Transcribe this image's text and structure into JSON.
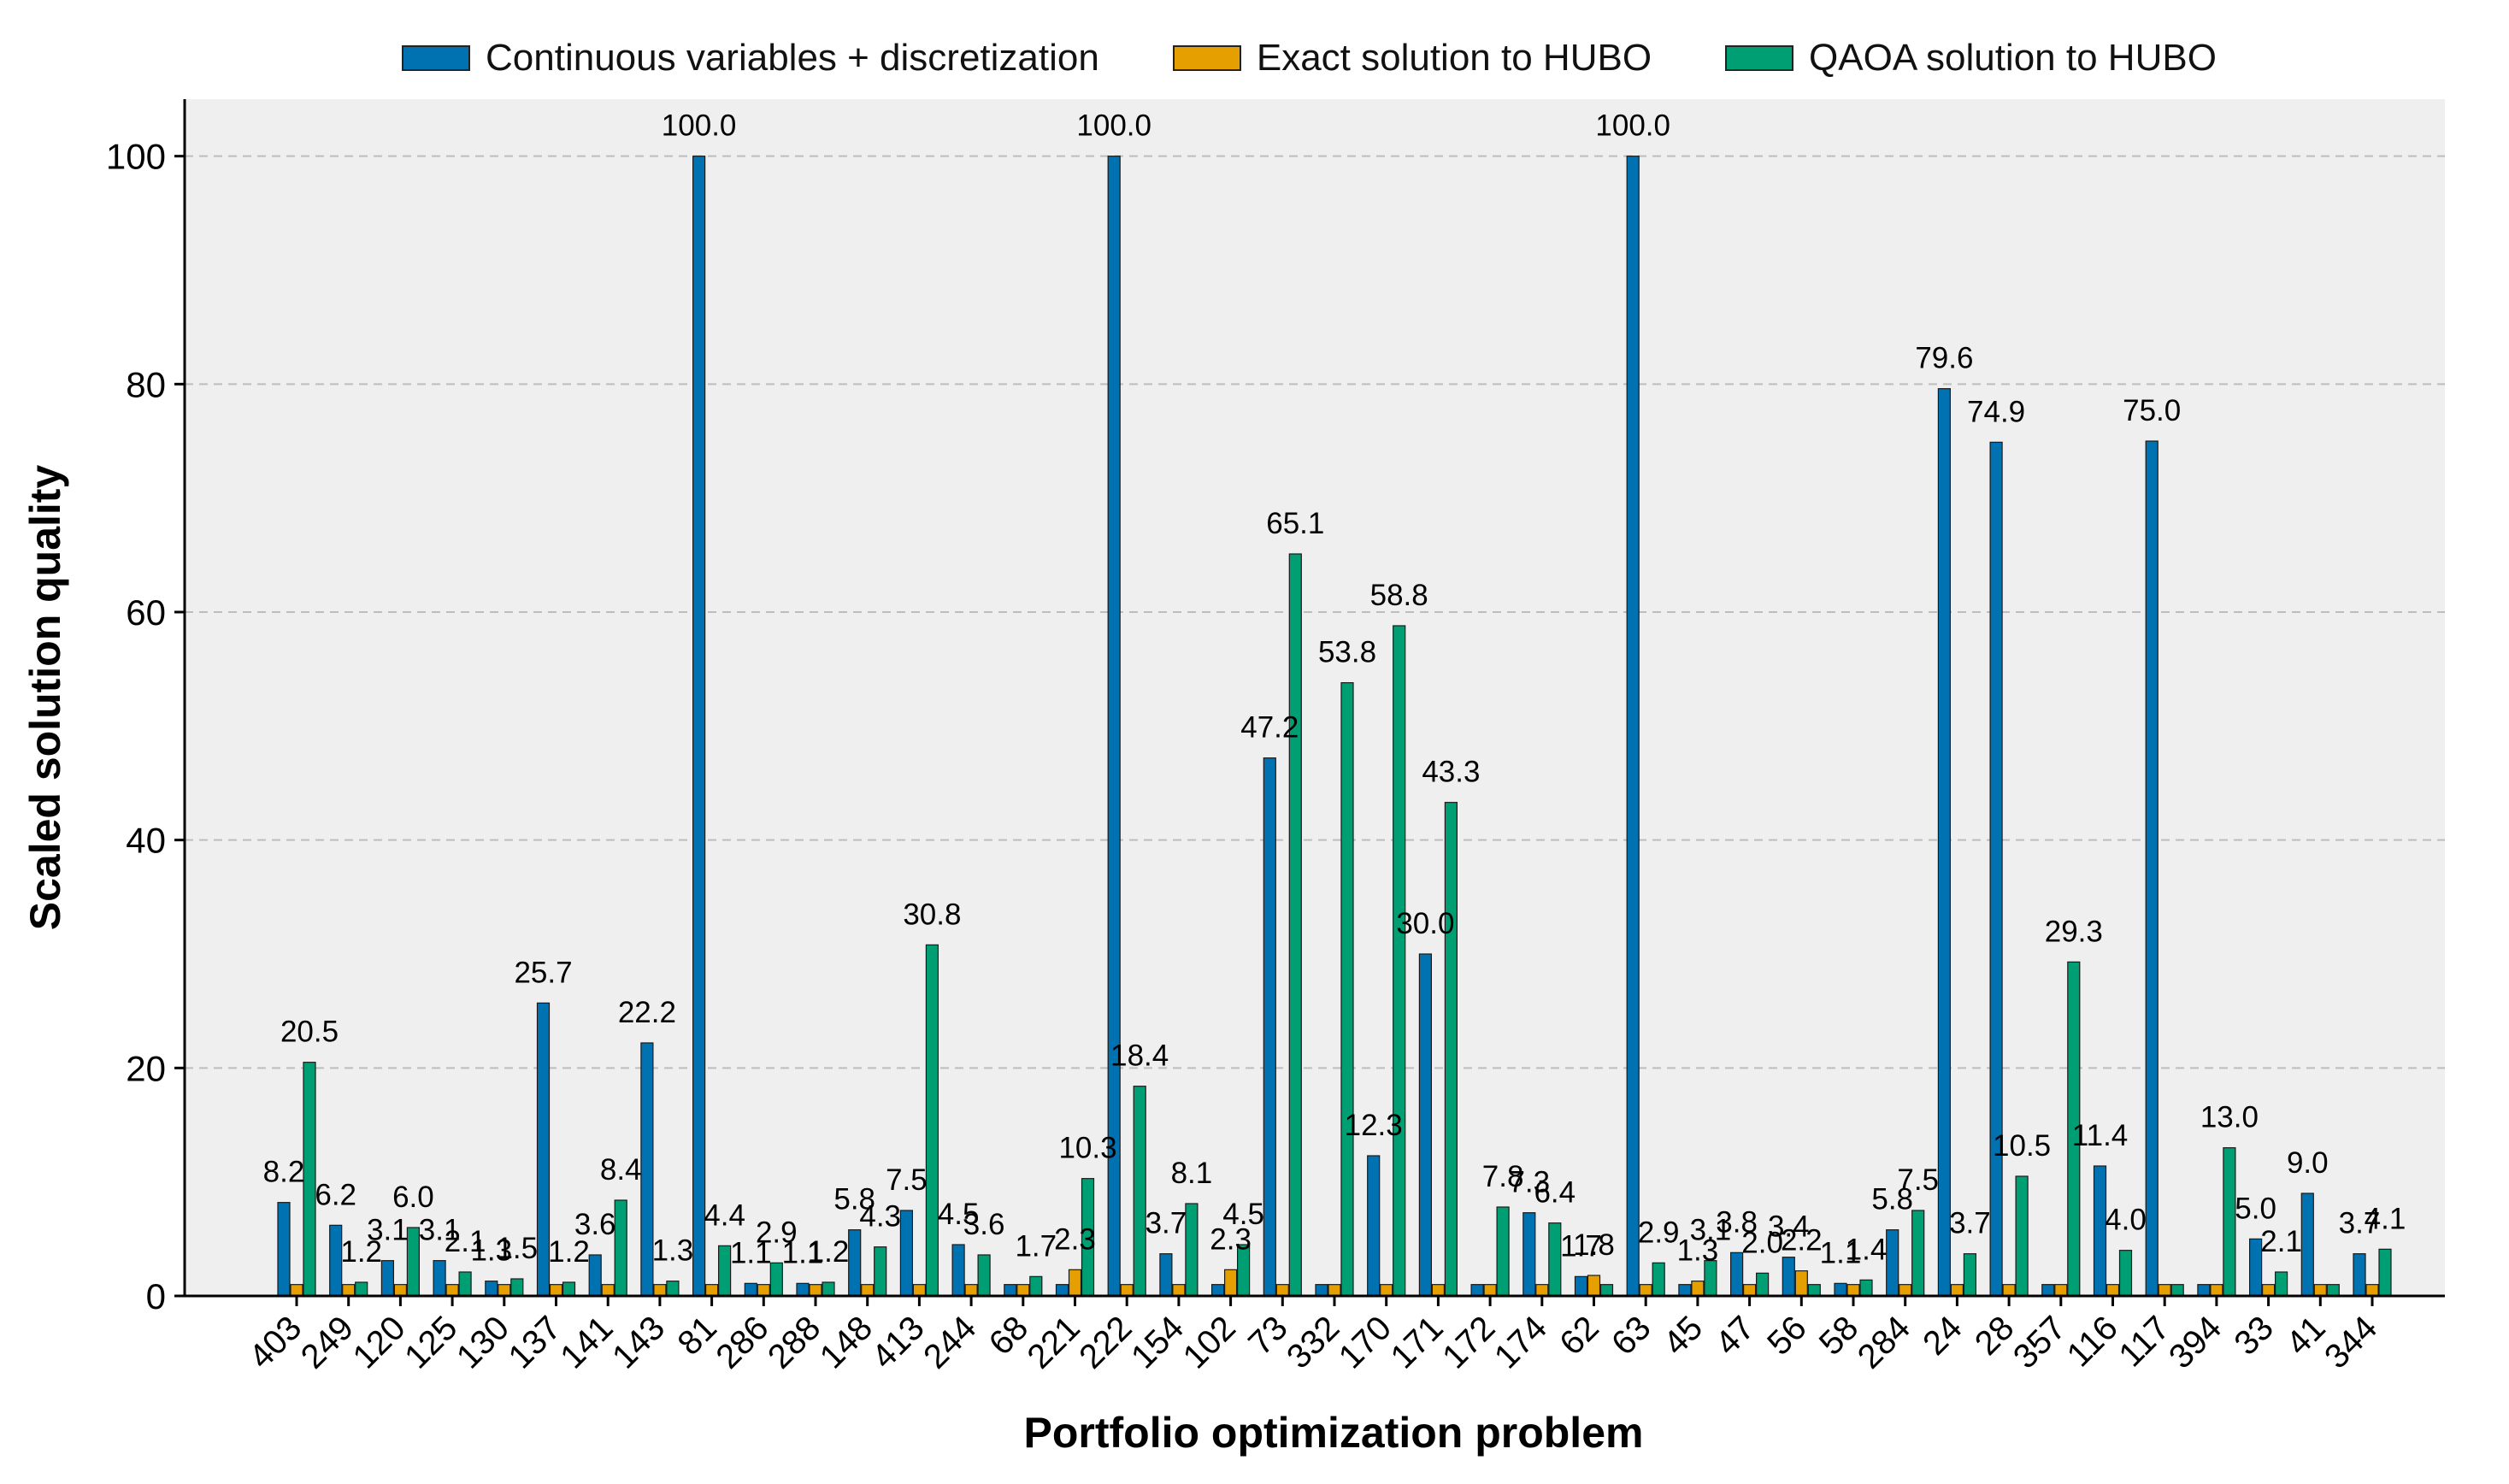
{
  "chart_data": {
    "type": "bar",
    "xlabel": "Portfolio optimization problem",
    "ylabel": "Scaled solution quality",
    "ylim": [
      0,
      105
    ],
    "yticks": [
      0,
      20,
      40,
      60,
      80,
      100
    ],
    "grid": "y dashed",
    "legend_position": "top",
    "categories": [
      "403",
      "249",
      "120",
      "125",
      "130",
      "137",
      "141",
      "143",
      "81",
      "286",
      "288",
      "148",
      "413",
      "244",
      "68",
      "221",
      "222",
      "154",
      "102",
      "73",
      "332",
      "170",
      "171",
      "172",
      "174",
      "62",
      "63",
      "45",
      "47",
      "56",
      "58",
      "284",
      "24",
      "28",
      "357",
      "116",
      "117",
      "394",
      "33",
      "41",
      "344"
    ],
    "series": [
      {
        "name": "Continuous variables + discretization",
        "color": "#0072b2",
        "values": [
          8.2,
          6.2,
          3.1,
          3.1,
          1.3,
          25.7,
          3.6,
          22.2,
          100.0,
          1.1,
          1.1,
          5.8,
          7.5,
          4.5,
          1.0,
          1.0,
          100.0,
          3.7,
          1.0,
          47.2,
          1.0,
          12.3,
          30.0,
          1.0,
          7.3,
          1.7,
          100.0,
          1.0,
          3.8,
          3.4,
          1.1,
          5.8,
          79.6,
          74.9,
          1.0,
          11.4,
          75.0,
          1.0,
          5.0,
          9.0,
          3.7
        ]
      },
      {
        "name": "Exact solution to HUBO",
        "color": "#e69f00",
        "values": [
          1.0,
          1.0,
          1.0,
          1.0,
          1.0,
          1.0,
          1.0,
          1.0,
          1.0,
          1.0,
          1.0,
          1.0,
          1.0,
          1.0,
          1.0,
          2.3,
          1.0,
          1.0,
          2.3,
          1.0,
          1.0,
          1.0,
          1.0,
          1.0,
          1.0,
          1.8,
          1.0,
          1.3,
          1.0,
          2.2,
          1.0,
          1.0,
          1.0,
          1.0,
          1.0,
          1.0,
          1.0,
          1.0,
          1.0,
          1.0,
          1.0
        ]
      },
      {
        "name": "QAOA solution to HUBO",
        "color": "#009e73",
        "values": [
          20.5,
          1.2,
          6.0,
          2.1,
          1.5,
          1.2,
          8.4,
          1.3,
          4.4,
          2.9,
          1.2,
          4.3,
          30.8,
          3.6,
          1.7,
          10.3,
          18.4,
          8.1,
          4.5,
          65.1,
          53.8,
          58.8,
          43.3,
          7.8,
          6.4,
          1.0,
          2.9,
          3.1,
          2.0,
          1.0,
          1.4,
          7.5,
          3.7,
          10.5,
          29.3,
          4.0,
          1.0,
          13.0,
          2.1,
          1.0,
          4.1
        ]
      }
    ],
    "labels": [
      {
        "text": "8.2",
        "x": "403",
        "series": 0,
        "y": 8.2
      },
      {
        "text": "20.5",
        "x": "403",
        "series": 2,
        "y": 20.5
      },
      {
        "text": "6.2",
        "x": "249",
        "series": 0,
        "y": 6.2
      },
      {
        "text": "1.2",
        "x": "249",
        "series": 2,
        "y": 1.2
      },
      {
        "text": "3.1",
        "x": "120",
        "series": 0,
        "y": 3.1
      },
      {
        "text": "6.0",
        "x": "120",
        "series": 2,
        "y": 6.0
      },
      {
        "text": "3.1",
        "x": "125",
        "series": 0,
        "y": 3.1
      },
      {
        "text": "2.1",
        "x": "125",
        "series": 2,
        "y": 2.1
      },
      {
        "text": "1.3",
        "x": "130",
        "series": 0,
        "y": 1.3
      },
      {
        "text": "1.5",
        "x": "130",
        "series": 2,
        "y": 1.5
      },
      {
        "text": "25.7",
        "x": "137",
        "series": 0,
        "y": 25.7
      },
      {
        "text": "1.2",
        "x": "137",
        "series": 2,
        "y": 1.2
      },
      {
        "text": "3.6",
        "x": "141",
        "series": 0,
        "y": 3.6
      },
      {
        "text": "8.4",
        "x": "141",
        "series": 2,
        "y": 8.4
      },
      {
        "text": "22.2",
        "x": "143",
        "series": 0,
        "y": 22.2
      },
      {
        "text": "1.3",
        "x": "143",
        "series": 2,
        "y": 1.3
      },
      {
        "text": "100.0",
        "x": "81",
        "series": 0,
        "y": 100.0
      },
      {
        "text": "4.4",
        "x": "81",
        "series": 2,
        "y": 4.4
      },
      {
        "text": "1.1",
        "x": "286",
        "series": 0,
        "y": 1.1
      },
      {
        "text": "2.9",
        "x": "286",
        "series": 2,
        "y": 2.9
      },
      {
        "text": "1.1",
        "x": "288",
        "series": 0,
        "y": 1.1
      },
      {
        "text": "1.2",
        "x": "288",
        "series": 2,
        "y": 1.2
      },
      {
        "text": "5.8",
        "x": "148",
        "series": 0,
        "y": 5.8
      },
      {
        "text": "4.3",
        "x": "148",
        "series": 2,
        "y": 4.3
      },
      {
        "text": "7.5",
        "x": "413",
        "series": 0,
        "y": 7.5
      },
      {
        "text": "30.8",
        "x": "413",
        "series": 2,
        "y": 30.8
      },
      {
        "text": "4.5",
        "x": "244",
        "series": 0,
        "y": 4.5
      },
      {
        "text": "3.6",
        "x": "244",
        "series": 2,
        "y": 3.6
      },
      {
        "text": "1.7",
        "x": "68",
        "series": 2,
        "y": 1.7
      },
      {
        "text": "2.3",
        "x": "221",
        "series": 1,
        "y": 2.3
      },
      {
        "text": "10.3",
        "x": "221",
        "series": 2,
        "y": 10.3
      },
      {
        "text": "100.0",
        "x": "222",
        "series": 0,
        "y": 100.0
      },
      {
        "text": "18.4",
        "x": "222",
        "series": 2,
        "y": 18.4
      },
      {
        "text": "3.7",
        "x": "154",
        "series": 0,
        "y": 3.7
      },
      {
        "text": "8.1",
        "x": "154",
        "series": 2,
        "y": 8.1
      },
      {
        "text": "2.3",
        "x": "102",
        "series": 1,
        "y": 2.3
      },
      {
        "text": "4.5",
        "x": "102",
        "series": 2,
        "y": 4.5
      },
      {
        "text": "47.2",
        "x": "73",
        "series": 0,
        "y": 47.2
      },
      {
        "text": "65.1",
        "x": "73",
        "series": 2,
        "y": 65.1
      },
      {
        "text": "53.8",
        "x": "332",
        "series": 2,
        "y": 53.8
      },
      {
        "text": "12.3",
        "x": "170",
        "series": 0,
        "y": 12.3
      },
      {
        "text": "58.8",
        "x": "170",
        "series": 2,
        "y": 58.8
      },
      {
        "text": "30.0",
        "x": "171",
        "series": 0,
        "y": 30.0
      },
      {
        "text": "43.3",
        "x": "171",
        "series": 2,
        "y": 43.3
      },
      {
        "text": "7.8",
        "x": "172",
        "series": 2,
        "y": 7.8
      },
      {
        "text": "7.3",
        "x": "174",
        "series": 0,
        "y": 7.3
      },
      {
        "text": "6.4",
        "x": "174",
        "series": 2,
        "y": 6.4
      },
      {
        "text": "1.7",
        "x": "62",
        "series": 0,
        "y": 1.7
      },
      {
        "text": "1.8",
        "x": "62",
        "series": 1,
        "y": 1.8
      },
      {
        "text": "100.0",
        "x": "63",
        "series": 0,
        "y": 100.0
      },
      {
        "text": "2.9",
        "x": "63",
        "series": 2,
        "y": 2.9
      },
      {
        "text": "1.3",
        "x": "45",
        "series": 1,
        "y": 1.3
      },
      {
        "text": "3.1",
        "x": "45",
        "series": 2,
        "y": 3.1
      },
      {
        "text": "3.8",
        "x": "47",
        "series": 0,
        "y": 3.8
      },
      {
        "text": "2.0",
        "x": "47",
        "series": 2,
        "y": 2.0
      },
      {
        "text": "3.4",
        "x": "56",
        "series": 0,
        "y": 3.4
      },
      {
        "text": "2.2",
        "x": "56",
        "series": 1,
        "y": 2.2
      },
      {
        "text": "1.1",
        "x": "58",
        "series": 0,
        "y": 1.1
      },
      {
        "text": "1.4",
        "x": "58",
        "series": 2,
        "y": 1.4
      },
      {
        "text": "5.8",
        "x": "284",
        "series": 0,
        "y": 5.8
      },
      {
        "text": "7.5",
        "x": "284",
        "series": 2,
        "y": 7.5
      },
      {
        "text": "79.6",
        "x": "24",
        "series": 0,
        "y": 79.6
      },
      {
        "text": "3.7",
        "x": "24",
        "series": 2,
        "y": 3.7
      },
      {
        "text": "74.9",
        "x": "28",
        "series": 0,
        "y": 74.9
      },
      {
        "text": "10.5",
        "x": "28",
        "series": 2,
        "y": 10.5
      },
      {
        "text": "29.3",
        "x": "357",
        "series": 2,
        "y": 29.3
      },
      {
        "text": "11.4",
        "x": "116",
        "series": 0,
        "y": 11.4
      },
      {
        "text": "4.0",
        "x": "116",
        "series": 2,
        "y": 4.0
      },
      {
        "text": "75.0",
        "x": "117",
        "series": 0,
        "y": 75.0
      },
      {
        "text": "13.0",
        "x": "394",
        "series": 2,
        "y": 13.0
      },
      {
        "text": "5.0",
        "x": "33",
        "series": 0,
        "y": 5.0
      },
      {
        "text": "2.1",
        "x": "33",
        "series": 2,
        "y": 2.1
      },
      {
        "text": "9.0",
        "x": "41",
        "series": 0,
        "y": 9.0
      },
      {
        "text": "3.7",
        "x": "344",
        "series": 0,
        "y": 3.7
      },
      {
        "text": "4.1",
        "x": "344",
        "series": 2,
        "y": 4.1
      }
    ]
  }
}
